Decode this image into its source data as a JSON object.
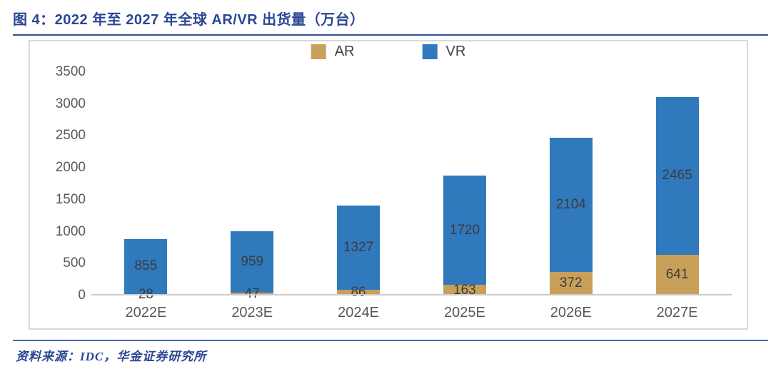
{
  "title": "图 4：2022 年至 2027 年全球 AR/VR 出货量（万台）",
  "source": "资料来源：IDC，华金证券研究所",
  "colors": {
    "navy": "#2B4695",
    "title_rule": "#30509B",
    "source_rule": "#4668AE",
    "ar": "#C9A05A",
    "vr": "#3079BD",
    "axis_text": "#595959",
    "value_text": "#3C3C3C",
    "box_border": "#D9D9D9",
    "axis_line": "#CCCCCC"
  },
  "chart_data": {
    "type": "bar",
    "stacked": true,
    "title": "2022 年至 2027 年全球 AR/VR 出货量（万台）",
    "categories": [
      "2022E",
      "2023E",
      "2024E",
      "2025E",
      "2026E",
      "2027E"
    ],
    "series": [
      {
        "name": "AR",
        "color": "#C9A05A",
        "values": [
          28,
          47,
          86,
          163,
          372,
          641
        ]
      },
      {
        "name": "VR",
        "color": "#3079BD",
        "values": [
          855,
          959,
          1327,
          1720,
          2104,
          2465
        ]
      }
    ],
    "xlabel": "",
    "ylabel": "",
    "ylim": [
      0,
      3500
    ],
    "yticks": [
      0,
      500,
      1000,
      1500,
      2000,
      2500,
      3000,
      3500
    ],
    "legend_position": "top-center",
    "grid": false,
    "data_labels": true
  }
}
